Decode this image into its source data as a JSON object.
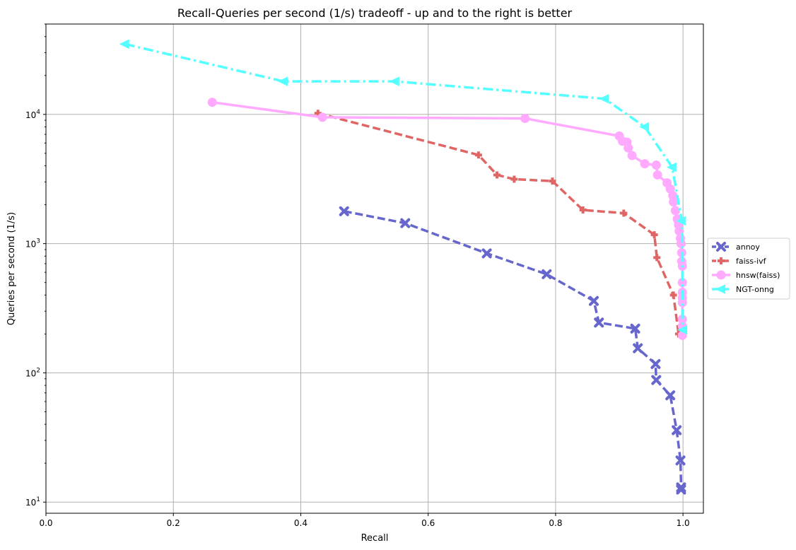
{
  "chart_data": {
    "type": "line",
    "title": "Recall-Queries per second (1/s) tradeoff - up and to the right is better",
    "xlabel": "Recall",
    "ylabel": "Queries per second (1/s)",
    "xlim": [
      0.0,
      1.032
    ],
    "ylim": [
      8.2,
      50000
    ],
    "yscale": "log",
    "grid": true,
    "legend_placement": "right",
    "x_ticks": [
      {
        "value": 0.0,
        "label": "0.0"
      },
      {
        "value": 0.2,
        "label": "0.2"
      },
      {
        "value": 0.4,
        "label": "0.4"
      },
      {
        "value": 0.6,
        "label": "0.6"
      },
      {
        "value": 0.8,
        "label": "0.8"
      },
      {
        "value": 1.0,
        "label": "1.0"
      }
    ],
    "y_ticks": [
      {
        "value": 10,
        "base": "10",
        "exp": "1"
      },
      {
        "value": 100,
        "base": "10",
        "exp": "2"
      },
      {
        "value": 1000,
        "base": "10",
        "exp": "3"
      },
      {
        "value": 10000,
        "base": "10",
        "exp": "4"
      }
    ],
    "series": [
      {
        "name": "annoy",
        "color": "#6666cc",
        "marker": "x",
        "dash": "dashed",
        "points": [
          [
            0.468,
            1780
          ],
          [
            0.564,
            1440
          ],
          [
            0.692,
            840
          ],
          [
            0.786,
            580
          ],
          [
            0.86,
            360
          ],
          [
            0.868,
            245
          ],
          [
            0.925,
            220
          ],
          [
            0.929,
            155
          ],
          [
            0.957,
            117
          ],
          [
            0.958,
            88
          ],
          [
            0.98,
            67
          ],
          [
            0.99,
            36
          ],
          [
            0.996,
            21
          ],
          [
            0.997,
            13
          ],
          [
            0.997,
            12.5
          ]
        ]
      },
      {
        "name": "faiss-ivf",
        "color": "#e06666",
        "marker": "plus",
        "dash": "dashed",
        "points": [
          [
            0.427,
            10200
          ],
          [
            0.679,
            4850
          ],
          [
            0.708,
            3400
          ],
          [
            0.735,
            3150
          ],
          [
            0.795,
            3050
          ],
          [
            0.843,
            1820
          ],
          [
            0.907,
            1720
          ],
          [
            0.955,
            1170
          ],
          [
            0.959,
            780
          ],
          [
            0.985,
            400
          ],
          [
            0.993,
            200
          ]
        ]
      },
      {
        "name": "hnsw(faiss)",
        "color": "#ffaaff",
        "marker": "circle",
        "dash": "solid",
        "points": [
          [
            0.261,
            12400
          ],
          [
            0.434,
            9500
          ],
          [
            0.752,
            9300
          ],
          [
            0.9,
            6800
          ],
          [
            0.905,
            6200
          ],
          [
            0.912,
            6100
          ],
          [
            0.914,
            5500
          ],
          [
            0.92,
            4800
          ],
          [
            0.94,
            4150
          ],
          [
            0.958,
            4050
          ],
          [
            0.96,
            3400
          ],
          [
            0.975,
            2950
          ],
          [
            0.98,
            2650
          ],
          [
            0.984,
            2350
          ],
          [
            0.985,
            2100
          ],
          [
            0.988,
            1800
          ],
          [
            0.991,
            1550
          ],
          [
            0.993,
            1400
          ],
          [
            0.994,
            1250
          ],
          [
            0.996,
            1100
          ],
          [
            0.997,
            1000
          ],
          [
            0.998,
            850
          ],
          [
            0.998,
            730
          ],
          [
            0.999,
            670
          ],
          [
            0.999,
            500
          ],
          [
            0.999,
            420
          ],
          [
            0.999,
            380
          ],
          [
            0.999,
            350
          ],
          [
            0.999,
            260
          ],
          [
            0.999,
            230
          ],
          [
            0.999,
            195
          ]
        ]
      },
      {
        "name": "NGT-onng",
        "color": "#55ffff",
        "marker": "triangle-left",
        "dash": "dashdot",
        "points": [
          [
            0.124,
            35000
          ],
          [
            0.373,
            18000
          ],
          [
            0.548,
            18000
          ],
          [
            0.877,
            13200
          ],
          [
            0.94,
            8000
          ],
          [
            0.983,
            3900
          ],
          [
            0.998,
            1500
          ],
          [
            1.0,
            215
          ]
        ]
      }
    ]
  }
}
